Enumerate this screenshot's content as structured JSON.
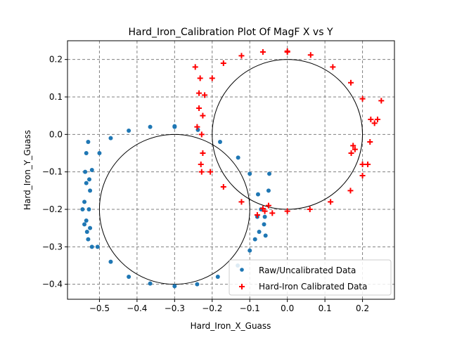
{
  "chart_data": {
    "type": "scatter",
    "title": "Hard_Iron_Calibration Plot Of MagF X vs Y",
    "xlabel": "Hard_Iron_X_Guass",
    "ylabel": "Hard_Iron_Y_Guass",
    "xlim": [
      -0.585,
      0.285
    ],
    "ylim": [
      -0.44,
      0.25
    ],
    "xticks": [
      -0.5,
      -0.4,
      -0.3,
      -0.2,
      -0.1,
      0.0,
      0.1,
      0.2
    ],
    "xtick_labels": [
      "−0.5",
      "−0.4",
      "−0.3",
      "−0.2",
      "−0.1",
      "0.0",
      "0.1",
      "0.2"
    ],
    "yticks": [
      -0.4,
      -0.3,
      -0.2,
      -0.1,
      0.0,
      0.1,
      0.2
    ],
    "ytick_labels": [
      "−0.4",
      "−0.3",
      "−0.2",
      "−0.1",
      "0.0",
      "0.1",
      "0.2"
    ],
    "grid": true,
    "legend_position": "lower-right",
    "series": [
      {
        "name": "Raw/Uncalibrated Data",
        "marker": "circle",
        "color": "#1f77b4",
        "x": [
          -0.3,
          -0.238,
          -0.179,
          -0.131,
          -0.1,
          -0.078,
          -0.08,
          -0.086,
          -0.1,
          -0.132,
          -0.185,
          -0.24,
          -0.3,
          -0.365,
          -0.422,
          -0.47,
          -0.505,
          -0.525,
          -0.528,
          -0.525,
          -0.52,
          -0.5,
          -0.47,
          -0.422,
          -0.365,
          -0.3,
          -0.535,
          -0.54,
          -0.53,
          -0.52,
          -0.545,
          -0.54,
          -0.535,
          -0.538,
          -0.535,
          -0.53,
          -0.527,
          -0.533,
          -0.06,
          -0.062,
          -0.07,
          -0.075,
          -0.058,
          -0.048,
          -0.05
        ],
        "y": [
          0.02,
          0.012,
          -0.02,
          -0.062,
          -0.105,
          -0.16,
          -0.22,
          -0.28,
          -0.31,
          -0.35,
          -0.38,
          -0.4,
          -0.405,
          -0.398,
          -0.38,
          -0.34,
          -0.3,
          -0.25,
          -0.2,
          -0.15,
          -0.095,
          -0.05,
          -0.01,
          0.01,
          0.02,
          0.022,
          -0.13,
          -0.18,
          -0.28,
          -0.3,
          -0.2,
          -0.24,
          -0.23,
          -0.1,
          -0.05,
          -0.02,
          -0.12,
          -0.26,
          -0.22,
          -0.24,
          -0.2,
          -0.26,
          -0.27,
          -0.105,
          -0.15
        ]
      },
      {
        "name": "Hard-Iron Calibrated Data",
        "marker": "plus",
        "color": "#ff0000",
        "x": [
          0.0,
          0.062,
          0.121,
          0.169,
          0.2,
          0.222,
          0.22,
          0.214,
          0.2,
          0.168,
          0.115,
          0.06,
          0.0,
          -0.065,
          -0.122,
          -0.17,
          -0.205,
          -0.225,
          -0.228,
          -0.225,
          -0.22,
          -0.2,
          -0.17,
          -0.122,
          -0.065,
          0.0,
          -0.235,
          -0.24,
          -0.23,
          -0.228,
          -0.245,
          -0.232,
          -0.235,
          0.25,
          0.18,
          0.17,
          0.175,
          0.24,
          0.2,
          0.232,
          -0.06,
          -0.04,
          -0.05,
          -0.08
        ],
        "y": [
          0.22,
          0.212,
          0.18,
          0.138,
          0.095,
          0.04,
          -0.02,
          -0.08,
          -0.11,
          -0.15,
          -0.18,
          -0.2,
          -0.205,
          -0.198,
          -0.18,
          -0.14,
          -0.1,
          -0.05,
          0.0,
          0.05,
          0.105,
          0.15,
          0.19,
          0.21,
          0.22,
          0.222,
          0.07,
          0.02,
          -0.08,
          -0.1,
          0.18,
          0.15,
          0.11,
          0.09,
          -0.04,
          -0.05,
          -0.03,
          0.04,
          -0.08,
          0.03,
          -0.205,
          -0.21,
          -0.19,
          -0.215
        ]
      }
    ],
    "fit_circles": [
      {
        "cx": -0.3,
        "cy": -0.2,
        "r": 0.2
      },
      {
        "cx": 0.0,
        "cy": 0.0,
        "r": 0.2
      }
    ]
  }
}
